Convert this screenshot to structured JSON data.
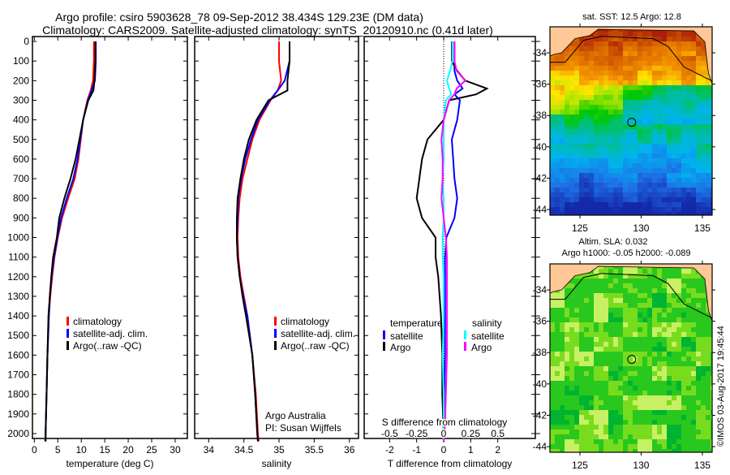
{
  "title_line1": "Argo profile: csiro 5903628_78 09-Sep-2012 38.434S 129.23E (DM data)",
  "title_line2": "Climatology: CARS2009. Satellite-adjusted climatology: synTS_20120910.nc (0.41d later)",
  "colors": {
    "climatology": "#ff0000",
    "satellite": "#0000ff",
    "argo": "#000000",
    "sal_satellite": "#00ffff",
    "sal_argo": "#ff00ff",
    "land": "#ffc896"
  },
  "chart_data": [
    {
      "type": "line",
      "id": "temperature",
      "xlabel": "temperature (deg C)",
      "xlim": [
        -0.4,
        32.6
      ],
      "ylim": [
        2025,
        -25
      ],
      "xticks": [
        0,
        5,
        10,
        15,
        20,
        25,
        30
      ],
      "yticks": [
        0,
        100,
        200,
        300,
        400,
        500,
        600,
        700,
        800,
        900,
        1000,
        1100,
        1200,
        1300,
        1400,
        1500,
        1600,
        1700,
        1800,
        1900,
        2000
      ],
      "legend": [
        "climatology",
        "satellite-adj. clim.",
        "Argo(..raw -QC)"
      ],
      "depth": [
        0,
        100,
        150,
        200,
        250,
        300,
        400,
        500,
        600,
        700,
        800,
        900,
        1000,
        1100,
        1200,
        1300,
        1400,
        1600,
        1800,
        2000,
        2040
      ],
      "series": [
        {
          "name": "climatology",
          "color": "#ff0000",
          "values": [
            12.7,
            12.7,
            12.6,
            12.5,
            12.0,
            11.3,
            10.4,
            9.9,
            9.4,
            8.6,
            7.2,
            5.9,
            5.0,
            4.3,
            3.8,
            3.4,
            3.1,
            2.8,
            2.6,
            2.4,
            2.3
          ]
        },
        {
          "name": "satellite-adj. clim.",
          "color": "#0000ff",
          "values": [
            13.1,
            13.1,
            13.0,
            12.9,
            12.2,
            11.4,
            10.4,
            9.8,
            9.2,
            8.3,
            6.9,
            5.7,
            4.9,
            4.2,
            3.7,
            3.3,
            3.1,
            2.8,
            2.6,
            2.4,
            2.4
          ]
        },
        {
          "name": "Argo(..raw -QC)",
          "color": "#000000",
          "values": [
            13.0,
            13.0,
            12.9,
            12.8,
            12.6,
            11.5,
            10.4,
            9.6,
            8.8,
            7.7,
            6.4,
            5.3,
            4.8,
            4.0,
            3.6,
            3.3,
            3.0,
            2.8,
            2.6,
            2.4,
            2.4
          ]
        }
      ]
    },
    {
      "type": "line",
      "id": "salinity",
      "xlabel": "salinity",
      "xlim": [
        33.8,
        36.13
      ],
      "ylim": [
        2025,
        -25
      ],
      "xticks": [
        34,
        34.5,
        35,
        35.5,
        36
      ],
      "legend": [
        "climatology",
        "satellite-adj. clim.",
        "Argo(..raw -QC)"
      ],
      "annotation": [
        "Argo Australia",
        "PI: Susan Wijffels"
      ],
      "depth": [
        0,
        100,
        200,
        250,
        300,
        400,
        500,
        600,
        700,
        800,
        900,
        1000,
        1100,
        1200,
        1300,
        1400,
        1600,
        1800,
        2000,
        2040
      ],
      "series": [
        {
          "name": "climatology",
          "color": "#ff0000",
          "values": [
            35.0,
            35.0,
            35.03,
            34.98,
            34.88,
            34.72,
            34.62,
            34.55,
            34.48,
            34.44,
            34.42,
            34.41,
            34.42,
            34.45,
            34.5,
            34.55,
            34.62,
            34.67,
            34.7,
            34.71
          ]
        },
        {
          "name": "satellite-adj. clim.",
          "color": "#0000ff",
          "values": [
            35.15,
            35.15,
            35.08,
            34.98,
            34.87,
            34.7,
            34.6,
            34.52,
            34.46,
            34.42,
            34.41,
            34.4,
            34.41,
            34.44,
            34.49,
            34.55,
            34.62,
            34.66,
            34.69,
            34.7
          ]
        },
        {
          "name": "Argo(..raw -QC)",
          "color": "#000000",
          "values": [
            35.15,
            35.15,
            35.12,
            35.12,
            34.85,
            34.68,
            34.57,
            34.5,
            34.45,
            34.41,
            34.4,
            34.4,
            34.41,
            34.44,
            34.48,
            34.53,
            34.62,
            34.66,
            34.69,
            34.7
          ]
        }
      ]
    },
    {
      "type": "line",
      "id": "difference",
      "xlabel": "T difference from climatology",
      "x2label": "S difference from climatology",
      "xlim": [
        -2.94,
        3.39
      ],
      "ylim": [
        2025,
        -25
      ],
      "xticks": [
        -2,
        -1,
        0,
        1,
        2
      ],
      "x2ticks": [
        -0.5,
        -0.25,
        0,
        0.25,
        0.5
      ],
      "x2_scale": 0.25,
      "x2tick_labels": [
        "-0.5",
        "-0.25",
        "0",
        "0.25",
        "0.5"
      ],
      "legend_titles": [
        "temperature",
        "salinity"
      ],
      "legend": [
        "satellite",
        "Argo",
        "satellite",
        "Argo"
      ],
      "depth": [
        0,
        100,
        150,
        200,
        240,
        270,
        300,
        400,
        500,
        600,
        700,
        800,
        900,
        1000,
        1100,
        1200,
        1400,
        1600,
        1800,
        2000,
        2040
      ],
      "series": [
        {
          "name": "T satellite",
          "color": "#0000ff",
          "unit": "T",
          "values": [
            0.4,
            0.4,
            0.4,
            0.5,
            0.7,
            0.4,
            0.6,
            0.5,
            0.3,
            0.35,
            0.4,
            0.5,
            0.4,
            0.1,
            0.05,
            0.05,
            0.05,
            0.05,
            0.02,
            0.0,
            0.0
          ]
        },
        {
          "name": "T Argo",
          "color": "#000000",
          "unit": "T",
          "values": [
            0.3,
            0.3,
            0.5,
            0.8,
            1.6,
            1.2,
            0.2,
            0.0,
            -0.6,
            -0.8,
            -0.9,
            -1.0,
            -0.8,
            -0.3,
            -0.3,
            -0.2,
            -0.1,
            -0.05,
            -0.05,
            0.0,
            0.0
          ]
        },
        {
          "name": "S satellite",
          "color": "#00ffff",
          "unit": "S",
          "values": [
            0.08,
            0.08,
            0.06,
            0.03,
            0.05,
            0.07,
            0.02,
            0.0,
            0.0,
            0.0,
            -0.01,
            0.0,
            0.0,
            -0.01,
            -0.01,
            0.0,
            0.0,
            -0.01,
            0.0,
            0.0,
            0.0
          ]
        },
        {
          "name": "S Argo",
          "color": "#ff00ff",
          "unit": "S",
          "values": [
            0.1,
            0.1,
            0.12,
            0.2,
            0.12,
            0.1,
            0.05,
            0.0,
            -0.02,
            -0.01,
            -0.01,
            -0.02,
            0.0,
            0.02,
            0.03,
            0.03,
            0.03,
            0.03,
            0.02,
            0.01,
            0.0
          ]
        }
      ]
    },
    {
      "type": "heatmap",
      "id": "sst-map",
      "title": "sat. SST: 12.5 Argo: 12.8",
      "xlim": [
        122.55,
        135.8
      ],
      "ylim": [
        -32.34,
        -44.36
      ],
      "xticks": [
        125,
        130,
        135
      ],
      "yticks": [
        -34,
        -36,
        -38,
        -40,
        -42,
        -44
      ],
      "float_position": {
        "lon": 129.23,
        "lat": -38.434
      }
    },
    {
      "type": "heatmap",
      "id": "sla-map",
      "title": [
        "Altim. SLA: 0.032",
        "Argo h1000: -0.05 h2000: -0.089"
      ],
      "xlim": [
        122.55,
        135.8
      ],
      "ylim": [
        -32.34,
        -44.36
      ],
      "xticks": [
        125,
        130,
        135
      ],
      "yticks": [
        -34,
        -36,
        -38,
        -40,
        -42,
        -44
      ],
      "float_position": {
        "lon": 129.23,
        "lat": -38.434
      }
    }
  ],
  "credit": "©IMOS 03-Aug-2017 19:45:44"
}
